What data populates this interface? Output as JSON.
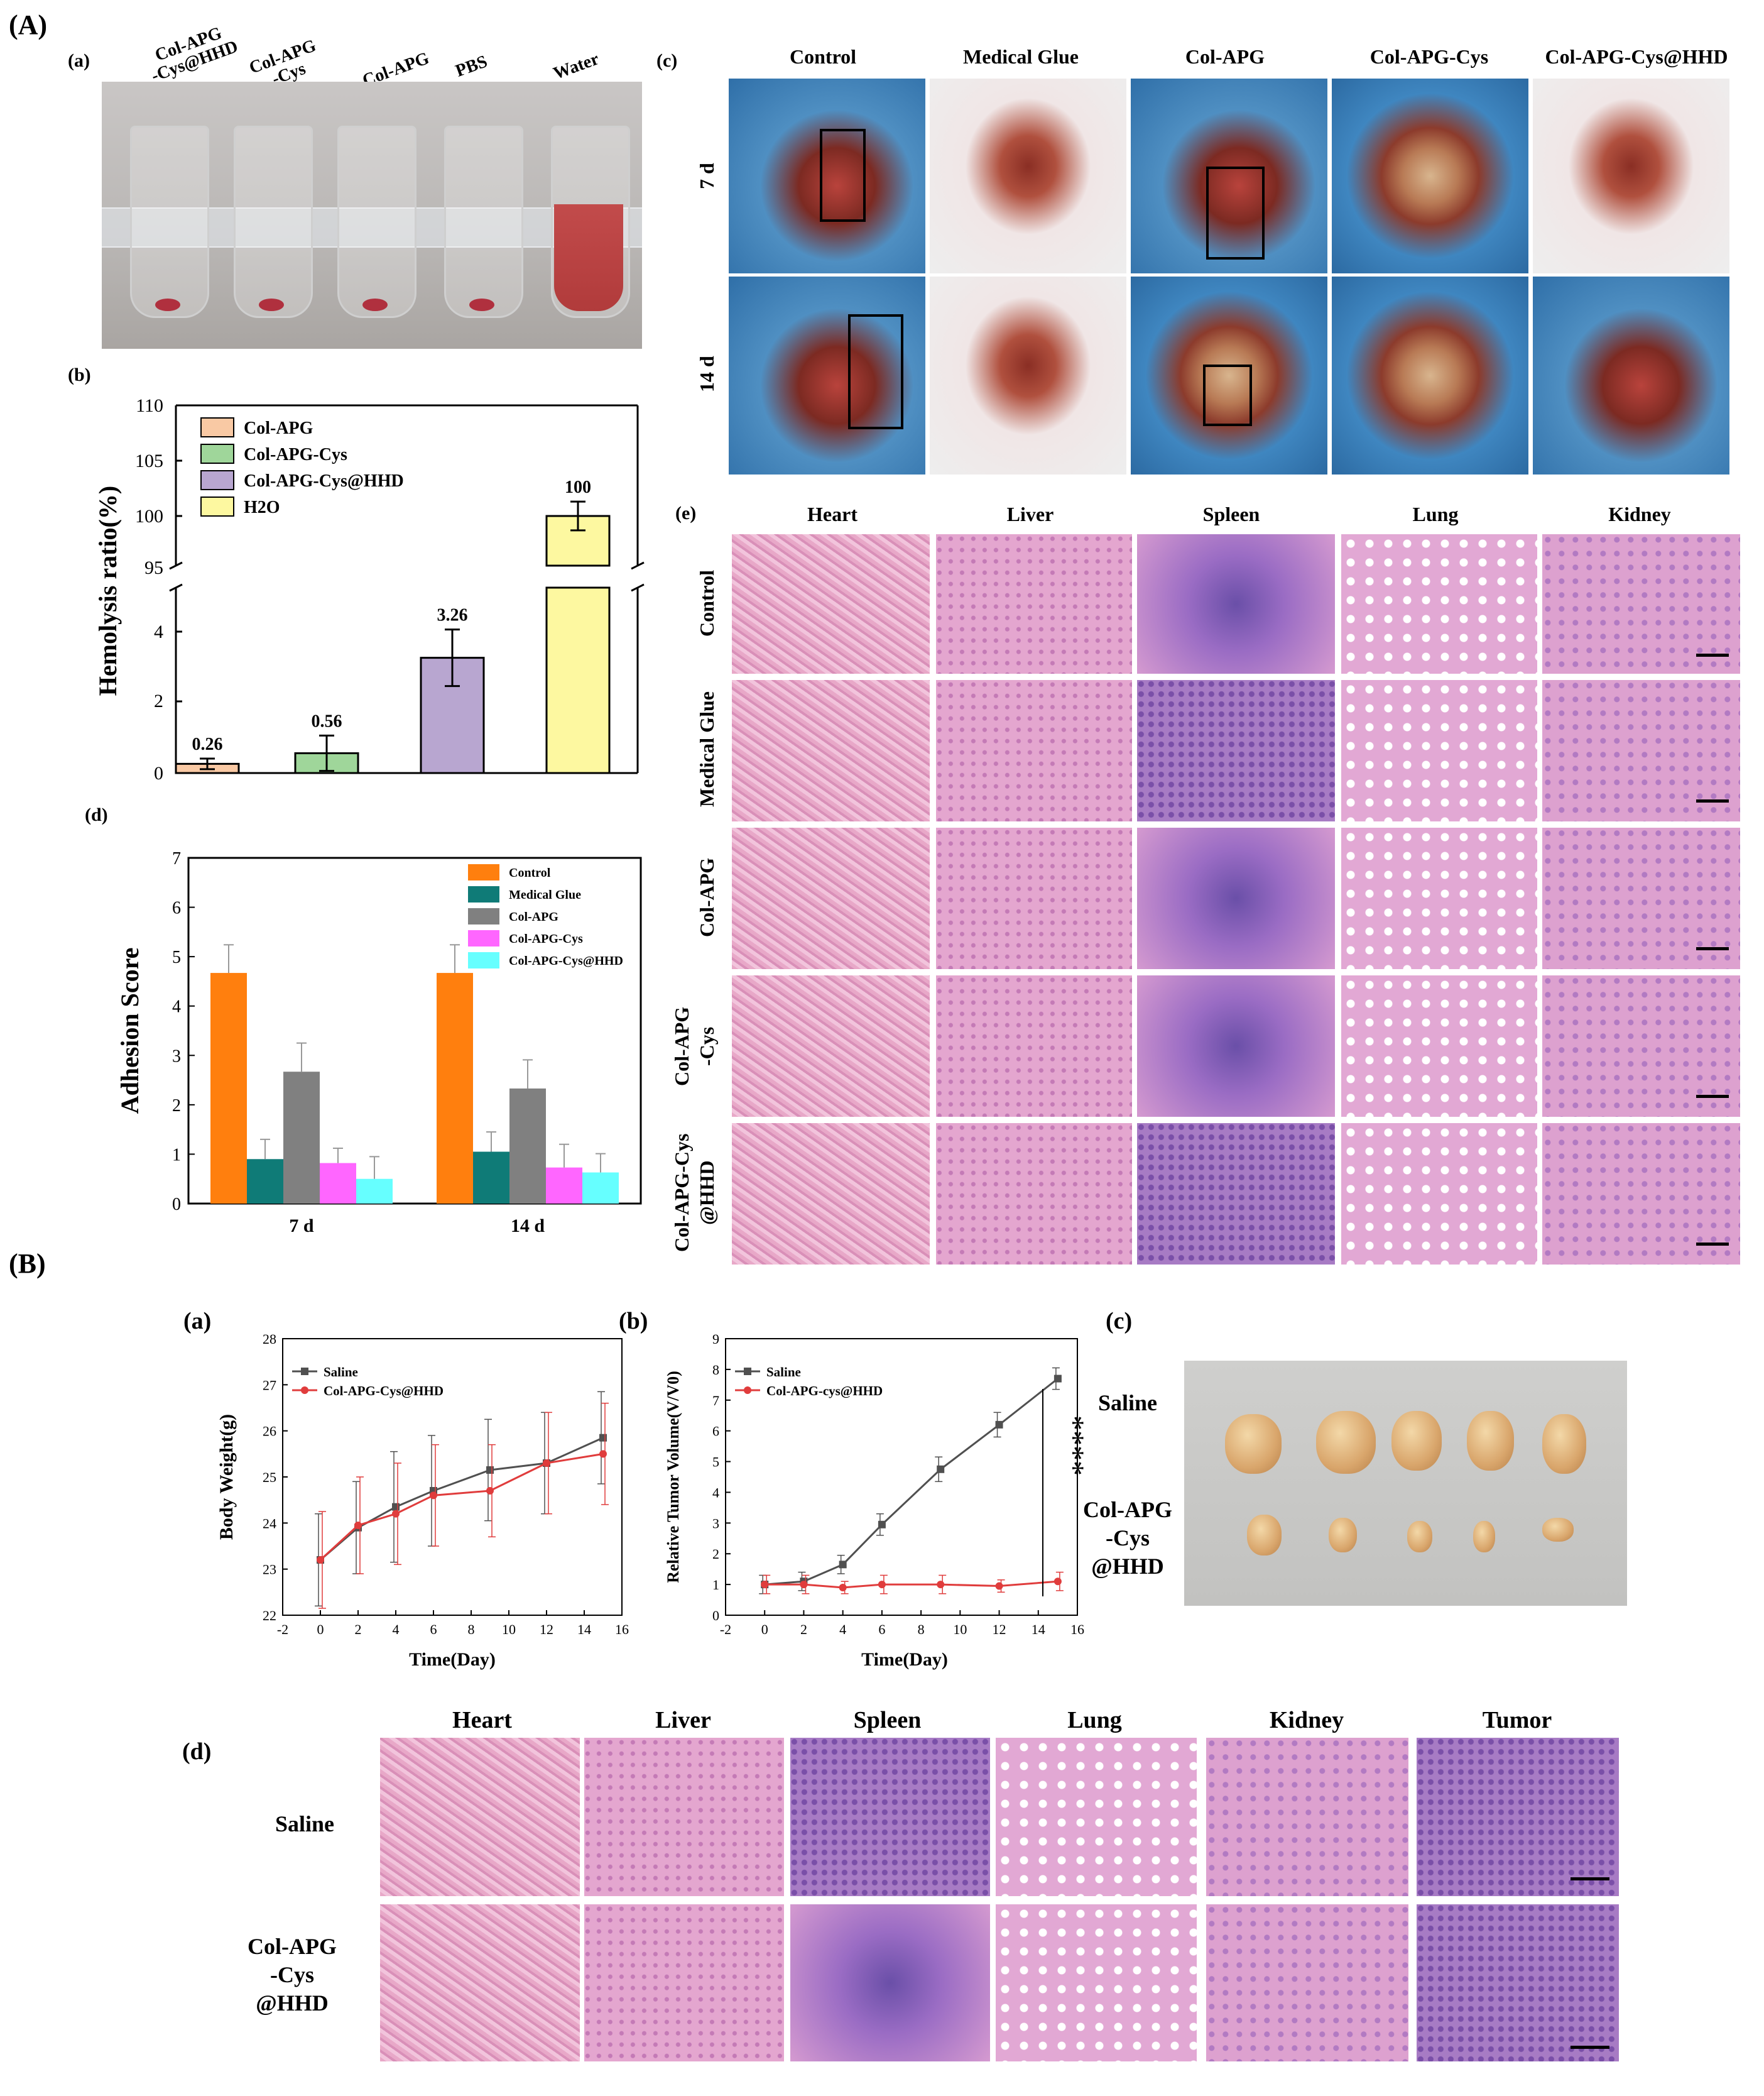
{
  "sections": {
    "A": "(A)",
    "B": "(B)"
  },
  "panel_labels": {
    "Aa": "(a)",
    "Ab": "(b)",
    "Ac": "(c)",
    "Ad": "(d)",
    "Ae": "(e)",
    "Ba": "(a)",
    "Bb": "(b)",
    "Bc": "(c)",
    "Bd": "(d)"
  },
  "tubes": {
    "labels": [
      "Col-APG\n-Cys@HHD",
      "Col-APG\n-Cys",
      "Col-APG",
      "PBS",
      "Water"
    ],
    "label_1_line1": "Col-APG",
    "label_1_line2": "-Cys@HHD",
    "label_2_line1": "Col-APG",
    "label_2_line2": "-Cys",
    "label_3": "Col-APG",
    "label_4": "PBS",
    "label_5": "Water"
  },
  "surgery": {
    "columns": [
      "Control",
      "Medical Glue",
      "Col-APG",
      "Col-APG-Cys",
      "Col-APG-Cys@HHD"
    ],
    "rows": [
      "7 d",
      "14 d"
    ]
  },
  "histology_A": {
    "columns": [
      "Heart",
      "Liver",
      "Spleen",
      "Lung",
      "Kidney"
    ],
    "rows": [
      "Control",
      "Medical Glue",
      "Col-APG",
      "Col-APG\n-Cys",
      "Col-APG-Cys\n@HHD"
    ],
    "row3_line1": "Col-APG",
    "row3_line2": "-Cys",
    "row4_line1": "Col-APG-Cys",
    "row4_line2": "@HHD"
  },
  "tumor_photo": {
    "row1": "Saline",
    "row2_line1": "Col-APG",
    "row2_line2": "-Cys",
    "row2_line3": "@HHD"
  },
  "histology_B": {
    "columns": [
      "Heart",
      "Liver",
      "Spleen",
      "Lung",
      "Kidney",
      "Tumor"
    ],
    "row1": "Saline",
    "row2_line1": "Col-APG",
    "row2_line2": "-Cys",
    "row2_line3": "@HHD"
  },
  "chart_data": [
    {
      "id": "hemolysis",
      "type": "bar",
      "categories": [
        "Col-APG",
        "Col-APG-Cys",
        "Col-APG-Cys@HHD",
        "H2O"
      ],
      "legend": [
        "Col-APG",
        "Col-APG-Cys",
        "Col-APG-Cys@HHD",
        "H2O"
      ],
      "values": [
        0.26,
        0.56,
        3.26,
        100
      ],
      "errors": [
        0.15,
        0.5,
        0.8,
        1.3
      ],
      "data_labels": [
        "0.26",
        "0.56",
        "3.26",
        "100"
      ],
      "colors": [
        "#f9c9a4",
        "#9fd69a",
        "#b8a6d0",
        "#fdf8a0"
      ],
      "ylabel": "Hemolysis ratio(%)",
      "ylim_lower": [
        0,
        5
      ],
      "ylim_upper": [
        95,
        110
      ],
      "yticks_lower": [
        "0",
        "2",
        "4"
      ],
      "yticks_upper": [
        "95",
        "100",
        "105",
        "110"
      ]
    },
    {
      "id": "adhesion",
      "type": "bar",
      "categories": [
        "7 d",
        "14 d"
      ],
      "series": [
        {
          "name": "Control",
          "values": [
            4.67,
            4.67
          ],
          "errors": [
            0.57,
            0.57
          ],
          "color": "#ff7f0e"
        },
        {
          "name": "Medical Glue",
          "values": [
            0.9,
            1.05
          ],
          "errors": [
            0.4,
            0.4
          ],
          "color": "#0f7b77"
        },
        {
          "name": "Col-APG",
          "values": [
            2.67,
            2.33
          ],
          "errors": [
            0.58,
            0.58
          ],
          "color": "#808080"
        },
        {
          "name": "Col-APG-Cys",
          "values": [
            0.82,
            0.73
          ],
          "errors": [
            0.3,
            0.47
          ],
          "color": "#ff66ff"
        },
        {
          "name": "Col-APG-Cys@HHD",
          "values": [
            0.5,
            0.63
          ],
          "errors": [
            0.45,
            0.38
          ],
          "color": "#66ffff"
        }
      ],
      "ylabel": "Adhesion Score",
      "ylim": [
        0,
        7
      ],
      "yticks": [
        "0",
        "1",
        "2",
        "3",
        "4",
        "5",
        "6",
        "7"
      ]
    },
    {
      "id": "bodyweight",
      "type": "line",
      "x": [
        0,
        2,
        4,
        6,
        9,
        12,
        15
      ],
      "series": [
        {
          "name": "Saline",
          "values": [
            23.2,
            23.9,
            24.35,
            24.7,
            25.15,
            25.3,
            25.85
          ],
          "errors": [
            1.0,
            1.0,
            1.2,
            1.2,
            1.1,
            1.1,
            1.0
          ],
          "color": "#505050"
        },
        {
          "name": "Col-APG-Cys@HHD",
          "values": [
            23.2,
            23.95,
            24.2,
            24.6,
            24.7,
            25.3,
            25.5
          ],
          "errors": [
            1.05,
            1.05,
            1.1,
            1.1,
            1.0,
            1.1,
            1.1
          ],
          "color": "#e03c3c"
        }
      ],
      "xlabel": "Time(Day)",
      "ylabel": "Body Weight(g)",
      "xlim": [
        -2,
        16
      ],
      "ylim": [
        22,
        28
      ],
      "xticks": [
        "-2",
        "0",
        "2",
        "4",
        "6",
        "8",
        "10",
        "12",
        "14",
        "16"
      ],
      "yticks": [
        "22",
        "23",
        "24",
        "25",
        "26",
        "27",
        "28"
      ]
    },
    {
      "id": "tumorvolume",
      "type": "line",
      "x": [
        0,
        2,
        4,
        6,
        9,
        12,
        15
      ],
      "series": [
        {
          "name": "Saline",
          "values": [
            1.0,
            1.1,
            1.65,
            2.95,
            4.75,
            6.2,
            7.7
          ],
          "errors": [
            0.3,
            0.3,
            0.3,
            0.35,
            0.4,
            0.4,
            0.35
          ],
          "color": "#505050"
        },
        {
          "name": "Col-APG-cys@HHD",
          "values": [
            1.0,
            1.0,
            0.9,
            1.0,
            1.0,
            0.95,
            1.1
          ],
          "errors": [
            0.3,
            0.3,
            0.2,
            0.3,
            0.3,
            0.2,
            0.3
          ],
          "color": "#e03c3c"
        }
      ],
      "xlabel": "Time(Day)",
      "ylabel": "Relative Tumor Volume(V/V0)",
      "xlim": [
        -2,
        16
      ],
      "ylim": [
        0,
        9
      ],
      "xticks": [
        "-2",
        "0",
        "2",
        "4",
        "6",
        "8",
        "10",
        "12",
        "14",
        "16"
      ],
      "yticks": [
        "0",
        "1",
        "2",
        "3",
        "4",
        "5",
        "6",
        "7",
        "8",
        "9"
      ],
      "annotation": "****"
    }
  ]
}
